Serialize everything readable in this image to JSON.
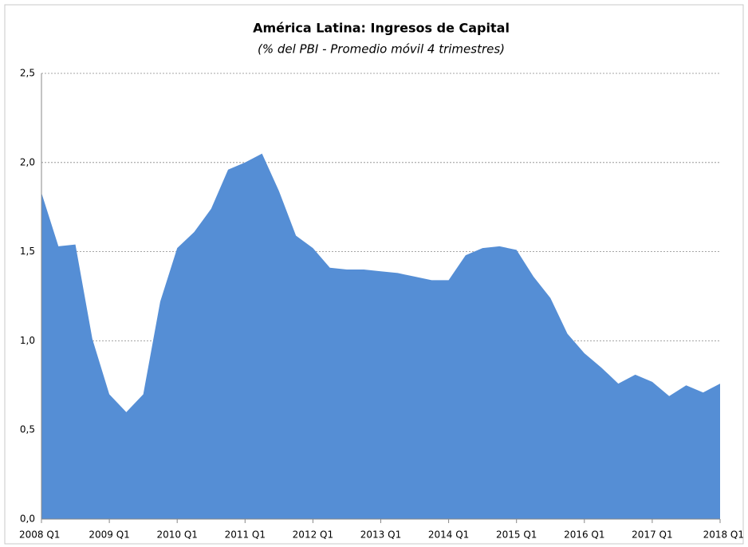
{
  "chart_data": {
    "type": "area",
    "title": "América Latina: Ingresos de Capital",
    "subtitle": "(% del PBI - Promedio móvil 4 trimestres)",
    "categories": [
      "2008 Q1",
      null,
      null,
      null,
      "2009 Q1",
      null,
      null,
      null,
      "2010 Q1",
      null,
      null,
      null,
      "2011 Q1",
      null,
      null,
      null,
      "2012 Q1",
      null,
      null,
      null,
      "2013 Q1",
      null,
      null,
      null,
      "2014 Q1",
      null,
      null,
      null,
      "2015 Q1",
      null,
      null,
      null,
      "2016 Q1",
      null,
      null,
      null,
      "2017 Q1",
      null,
      null,
      null,
      "2018 Q1"
    ],
    "values": [
      1.83,
      1.53,
      1.54,
      1.01,
      0.7,
      0.6,
      0.7,
      1.22,
      1.52,
      1.61,
      1.74,
      1.96,
      2.0,
      2.05,
      1.84,
      1.59,
      1.52,
      1.41,
      1.4,
      1.4,
      1.39,
      1.38,
      1.36,
      1.34,
      1.34,
      1.48,
      1.52,
      1.53,
      1.51,
      1.36,
      1.24,
      1.04,
      0.93,
      0.85,
      0.76,
      0.81,
      0.77,
      0.69,
      0.75,
      0.71,
      0.76
    ],
    "color": "#558ed5",
    "ylim": [
      0,
      2.5
    ],
    "yticks": [
      {
        "value": 0,
        "label": "0,0"
      },
      {
        "value": 0.5,
        "label": "0,5"
      },
      {
        "value": 1,
        "label": "1,0"
      },
      {
        "value": 1.5,
        "label": "1,5"
      },
      {
        "value": 2,
        "label": "2,0"
      },
      {
        "value": 2.5,
        "label": "2,5"
      }
    ],
    "grid": true
  }
}
